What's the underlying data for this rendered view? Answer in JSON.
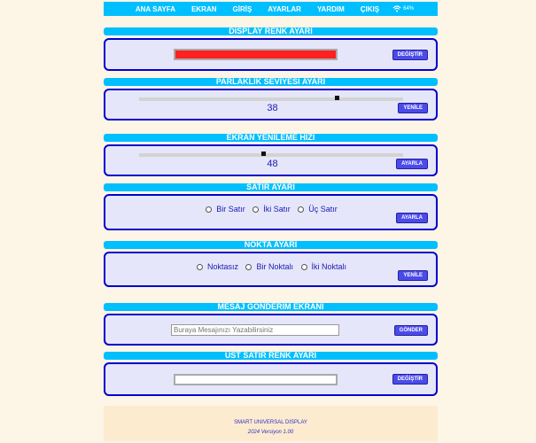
{
  "nav": {
    "items": [
      "ANA SAYFA",
      "EKRAN",
      "GİRİŞ",
      "AYARLAR",
      "YARDIM",
      "ÇIKIŞ"
    ],
    "wifi_icon": "wifi-icon",
    "signal": "64%"
  },
  "colors": {
    "accent": "#00bfff",
    "panel": "#e6e6fa",
    "border": "#0000cd",
    "button": "#4b4bea",
    "display_color": "#ff2020"
  },
  "display_color": {
    "title": "DISPLAY RENK AYARI",
    "button": "DEĞİŞTİR",
    "value": "#ff2020"
  },
  "brightness": {
    "title": "PARLAKLIK SEVİYESİ AYARI",
    "value": "38",
    "fraction": 0.755,
    "button": "YENİLE"
  },
  "refresh": {
    "title": "EKRAN YENİLEME HIZI",
    "value": "48",
    "fraction": 0.47,
    "button": "AYARLA"
  },
  "rows": {
    "title": "SATIR AYARI",
    "options": [
      "Bir Satır",
      "İki Satır",
      "Üç Satır"
    ],
    "button": "AYARLA"
  },
  "dots": {
    "title": "NOKTA AYARI",
    "options": [
      "Noktasız",
      "Bir Noktalı",
      "İki Noktalı"
    ],
    "button": "YENİLE"
  },
  "message": {
    "title": "MESAJ GÖNDERİM EKRANI",
    "placeholder": "Buraya Mesajınızı Yazabilirsiniz",
    "value": "",
    "button": "GÖNDER"
  },
  "top_row_color": {
    "title": "ÜST SATIR RENK AYARI",
    "button": "DEĞİŞTİR",
    "value": "#ffffff"
  },
  "footer": {
    "line1": "SMART UNIVERSAL DISPLAY",
    "line2": "2024 Versiyon 1.00"
  }
}
